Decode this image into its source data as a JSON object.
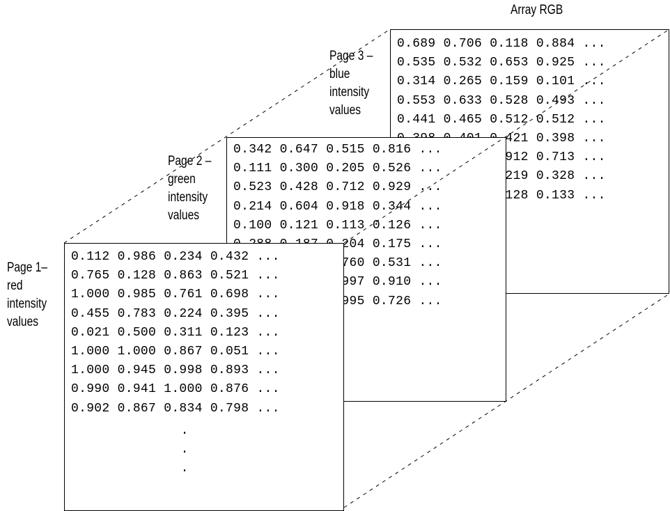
{
  "title": "Array RGB",
  "pages": [
    {
      "label_lines": [
        "Page 1–",
        "red",
        "intensity",
        "values"
      ],
      "rows": [
        "0.112 0.986 0.234 0.432 ...",
        "0.765 0.128 0.863 0.521 ...",
        "1.000 0.985 0.761 0.698 ...",
        "0.455 0.783 0.224 0.395 ...",
        "0.021 0.500 0.311 0.123 ...",
        "1.000 1.000 0.867 0.051 ...",
        "1.000 0.945 0.998 0.893 ...",
        "0.990 0.941 1.000 0.876 ...",
        "0.902 0.867 0.834 0.798 ..."
      ],
      "continuation": ".\n.\n."
    },
    {
      "label_lines": [
        "Page 2 –",
        "green",
        "intensity",
        "values"
      ],
      "rows": [
        "0.342 0.647 0.515 0.816 ...",
        "0.111 0.300 0.205 0.526 ...",
        "0.523 0.428 0.712 0.929 ...",
        "0.214 0.604 0.918 0.344 ...",
        "0.100 0.121 0.113 0.126 ...",
        "0.288 0.187 0.204 0.175 ...",
        "0.420 0.301 0.760 0.531 ...",
        "0.880 0.650 0.997 0.910 ...",
        "0.890 0.710 0.995 0.726 ..."
      ]
    },
    {
      "label_lines": [
        "Page 3 –",
        "blue",
        "intensity",
        "values"
      ],
      "rows": [
        "0.689 0.706 0.118 0.884 ...",
        "0.535 0.532 0.653 0.925 ...",
        "0.314 0.265 0.159 0.101 ...",
        "0.553 0.633 0.528 0.493 ...",
        "0.441 0.465 0.512 0.512 ...",
        "0.398 0.401 0.421 0.398 ...",
        "0.701 0.815 0.912 0.713 ...",
        "0.402 0.512 0.219 0.328 ...",
        "0.301 0.440 0.128 0.133 ..."
      ]
    }
  ]
}
